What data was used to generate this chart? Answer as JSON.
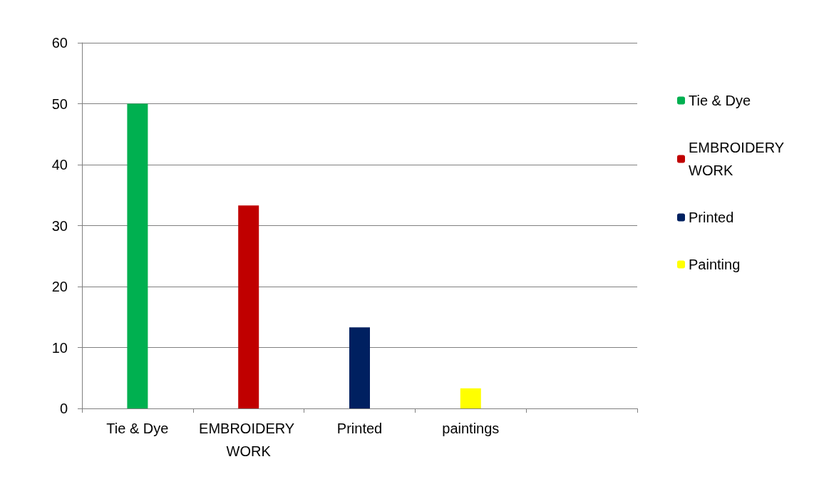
{
  "chart_data": {
    "type": "bar",
    "categories": [
      "Tie & Dye",
      "EMBROIDERY WORK",
      "Printed",
      "paintings",
      null
    ],
    "series": [
      {
        "name": "Tie & Dye",
        "color": "#00b050",
        "values": [
          50,
          null,
          null,
          null,
          null
        ]
      },
      {
        "name": "EMBROIDERY WORK",
        "color": "#c00000",
        "values": [
          null,
          33.3,
          null,
          null,
          null
        ]
      },
      {
        "name": "Printed",
        "color": "#002060",
        "values": [
          null,
          null,
          13.3,
          null,
          null
        ]
      },
      {
        "name": "Painting",
        "color": "#ffff00",
        "values": [
          null,
          null,
          null,
          3.3,
          null
        ]
      }
    ],
    "ylim": [
      0,
      60
    ],
    "yticks": [
      0,
      10,
      20,
      30,
      40,
      50,
      60
    ],
    "grid": "y",
    "legend": "right"
  }
}
